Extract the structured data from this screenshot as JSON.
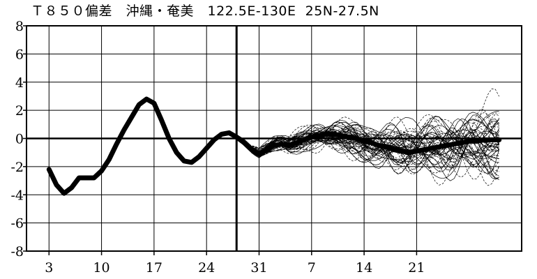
{
  "chart_data": {
    "type": "line",
    "title": "Ｔ８５０偏差　沖縄・奄美　122.5E-130E  25N-27.5N",
    "ylim": [
      -8,
      8
    ],
    "y_ticks": [
      "-8",
      "-6",
      "-4",
      "-2",
      "0",
      "2",
      "4",
      "6",
      "8"
    ],
    "x_ticks": [
      "3",
      "10",
      "17",
      "24",
      "31",
      "7",
      "14",
      "21"
    ],
    "grid": true,
    "observed": {
      "x": [
        3,
        4,
        5,
        6,
        7,
        8,
        9,
        10,
        11,
        12,
        13,
        14,
        15,
        16,
        17,
        18,
        19,
        20,
        21,
        22,
        23,
        24,
        25,
        26,
        27,
        28
      ],
      "y": [
        -2.2,
        -3.3,
        -3.9,
        -3.5,
        -2.8,
        -2.8,
        -2.8,
        -2.3,
        -1.5,
        -0.4,
        0.6,
        1.5,
        2.4,
        2.8,
        2.5,
        1.3,
        0.0,
        -1.0,
        -1.6,
        -1.7,
        -1.3,
        -0.7,
        -0.1,
        0.3,
        0.4,
        0.1
      ]
    },
    "ensemble_mean": {
      "x": [
        28,
        29,
        30,
        31,
        32,
        33,
        34,
        35,
        36,
        37,
        38,
        39,
        40,
        41,
        42,
        43,
        44,
        45,
        46,
        47,
        48,
        49,
        50,
        51,
        52,
        53,
        54,
        55,
        56,
        57,
        58,
        59,
        60,
        61,
        62,
        63
      ],
      "y": [
        0.1,
        -0.3,
        -0.8,
        -1.1,
        -0.8,
        -0.5,
        -0.4,
        -0.5,
        -0.3,
        -0.1,
        0.1,
        0.2,
        0.3,
        0.3,
        0.2,
        0.1,
        0.0,
        -0.2,
        -0.3,
        -0.5,
        -0.6,
        -0.8,
        -0.9,
        -1.0,
        -0.9,
        -0.8,
        -0.7,
        -0.6,
        -0.5,
        -0.4,
        -0.3,
        -0.2,
        -0.2,
        -0.1,
        -0.1,
        -0.1
      ]
    },
    "x_range": [
      0,
      66
    ],
    "vertical_line_x": 28,
    "ensemble_members": 51
  }
}
